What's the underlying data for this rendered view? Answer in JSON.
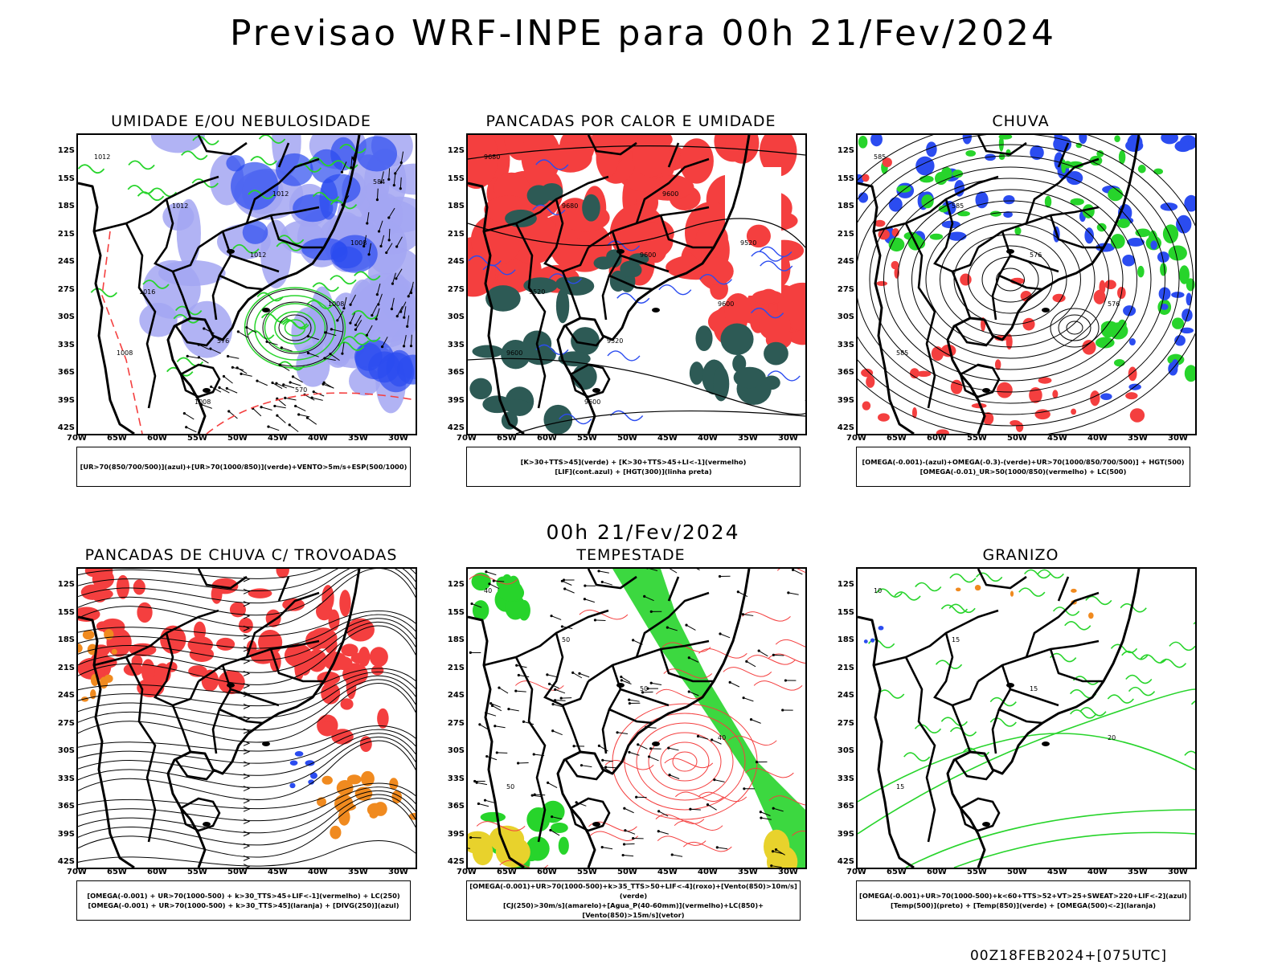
{
  "title": "Previsao WRF-INPE  para 00h 21/Fev/2024",
  "mid_date": "00h 21/Fev/2024",
  "footer": "00Z18FEB2024+[075UTC]",
  "lat_labels": [
    "12S",
    "15S",
    "18S",
    "21S",
    "24S",
    "27S",
    "30S",
    "33S",
    "36S",
    "39S",
    "42S"
  ],
  "lon_labels": [
    "70W",
    "65W",
    "60W",
    "55W",
    "50W",
    "45W",
    "40W",
    "35W",
    "30W"
  ],
  "colors": {
    "red": "#f43f3f",
    "green": "#27d42b",
    "blue": "#2b4cf0",
    "lavender": "#a3a6f2",
    "darkteal": "#2d5a55",
    "orange": "#f08a1f",
    "yellow": "#e8d22c"
  },
  "panels": [
    {
      "title": "UMIDADE E/OU NEBULOSIDADE",
      "legend": [
        "[UR>70(850/700/500)](azul)+[UR>70(1000/850)](verde)+VENTO>5m/s+ESP(500/1000)"
      ],
      "labels": [
        "1012",
        "1012",
        "1012",
        "1008",
        "1008",
        "1008",
        "1012",
        "1008",
        "1016",
        "576",
        "570",
        "584"
      ]
    },
    {
      "title": "PANCADAS POR CALOR E UMIDADE",
      "legend": [
        "[K>30+TTS>45](verde) + [K>30+TTS>45+LI<-1](vermelho)",
        "[LIF](cont.azul) + [HGT(300)](linha preta)"
      ],
      "labels": [
        "9680",
        "9680",
        "9600",
        "9600",
        "9600",
        "9600",
        "9600",
        "9520",
        "9520",
        "9520"
      ]
    },
    {
      "title": "CHUVA",
      "legend": [
        "[OMEGA(-0.001)-(azul)+OMEGA(-0.3)-(verde)+UR>70(1000/850/700/500)] + HGT(500)",
        "[OMEGA(-0.01)_UR>50(1000/850)(vermelho) + LC(500)"
      ],
      "labels": [
        "585",
        "585",
        "576",
        "576",
        "585"
      ]
    },
    {
      "title": "PANCADAS DE CHUVA C/ TROVOADAS",
      "legend": [
        "[OMEGA(-0.001) + UR>70(1000-500) + k>30_TTS>45+LIF<-1](vermelho) + LC(250)",
        "[OMEGA(-0.001) + UR>70(1000-500) + k>30_TTS>45](laranja) + [DIVG(250)](azul)"
      ],
      "labels": []
    },
    {
      "title": "TEMPESTADE",
      "legend": [
        "[OMEGA(-0.001)+UR>70(1000-500)+k>35_TTS>50+LIF<-4](roxo)+[Vento(850)>10m/s](verde)",
        "[CJ(250)>30m/s](amarelo)+[Agua_P(40-60mm)](vermelho)+LC(850)+[Vento(850)>15m/s](vetor)"
      ],
      "labels": [
        "40",
        "50",
        "50",
        "40",
        "50"
      ]
    },
    {
      "title": "GRANIZO",
      "legend": [
        "[OMEGA(-0.001)+UR>70(1000-500)+k<60+TTS>52+VT>25+SWEAT>220+LIF<-2](azul)",
        "[Temp(500)](preto) + [Temp(850)](verde) + [OMEGA(500)<-2](laranja)"
      ],
      "labels": [
        "10",
        "15",
        "15",
        "20",
        "15"
      ]
    }
  ]
}
